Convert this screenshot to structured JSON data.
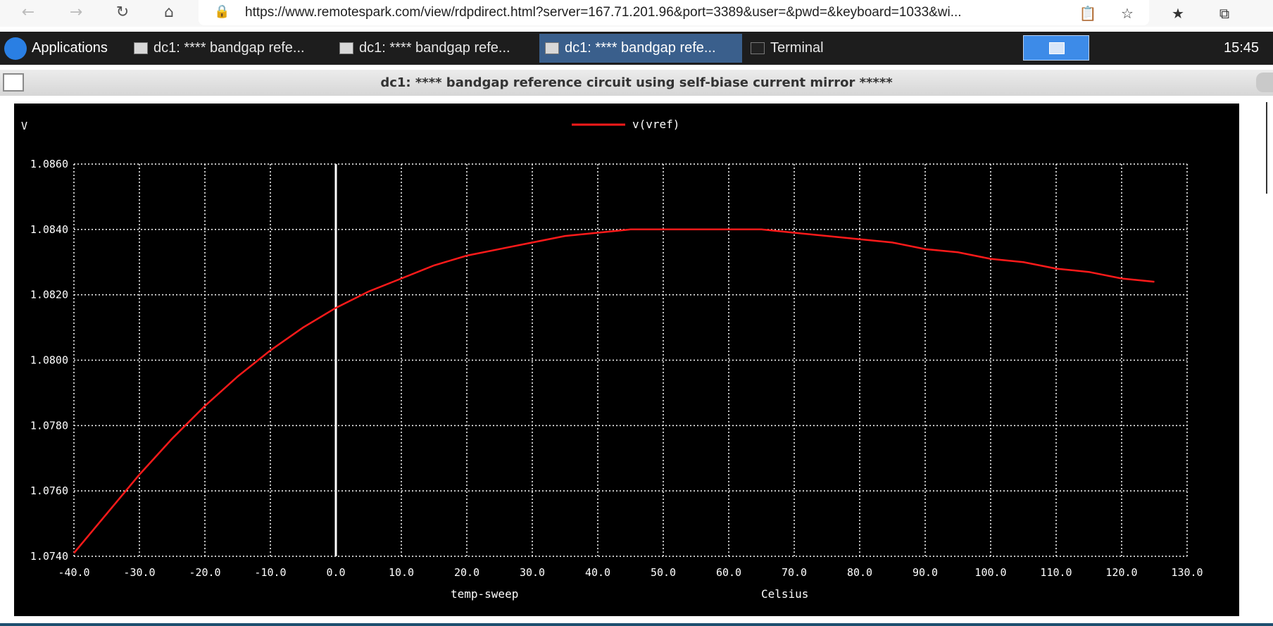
{
  "browser": {
    "url": "https://www.remotespark.com/view/rdpdirect.html?server=167.71.201.96&port=3389&user=&pwd=&keyboard=1033&wi...",
    "back_icon": "arrow-left-icon",
    "forward_icon": "arrow-right-icon",
    "reload_icon": "reload-icon",
    "home_icon": "home-icon",
    "lock_icon": "lock-icon",
    "toolbar_icons": [
      "clipboard-icon",
      "add-favorite-icon",
      "favorites-icon",
      "collections-icon"
    ]
  },
  "taskbar": {
    "apps_label": "Applications",
    "tasks": [
      {
        "label": "dc1: **** bandgap refe...",
        "active": false
      },
      {
        "label": "dc1: **** bandgap refe...",
        "active": false
      },
      {
        "label": "dc1: **** bandgap refe...",
        "active": true
      },
      {
        "label": "Terminal",
        "active": false
      }
    ],
    "clock": "15:45"
  },
  "window": {
    "title": "dc1: **** bandgap reference circuit using self-biase current mirror *****"
  },
  "chart_data": {
    "type": "line",
    "title": "",
    "xlabel": "temp-sweep",
    "xunit": "Celsius",
    "ylabel": "V",
    "xlim": [
      -40,
      130
    ],
    "ylim": [
      1.074,
      1.086
    ],
    "grid": true,
    "legend_placement": "top-center",
    "x_ticks": [
      "-40.0",
      "-30.0",
      "-20.0",
      "-10.0",
      "0.0",
      "10.0",
      "20.0",
      "30.0",
      "40.0",
      "50.0",
      "60.0",
      "70.0",
      "80.0",
      "90.0",
      "100.0",
      "110.0",
      "120.0",
      "130.0"
    ],
    "y_ticks": [
      "1.0740",
      "1.0760",
      "1.0780",
      "1.0800",
      "1.0820",
      "1.0840",
      "1.0860"
    ],
    "colors": {
      "series": "#ff1a1a",
      "grid": "#ffffff",
      "background": "#000000"
    },
    "series": [
      {
        "name": "v(vref)",
        "x": [
          -40,
          -35,
          -30,
          -25,
          -20,
          -15,
          -10,
          -5,
          0,
          5,
          10,
          15,
          20,
          25,
          30,
          35,
          40,
          45,
          50,
          55,
          60,
          65,
          70,
          75,
          80,
          85,
          90,
          95,
          100,
          105,
          110,
          115,
          120,
          125
        ],
        "y": [
          1.0741,
          1.0753,
          1.0765,
          1.0776,
          1.0786,
          1.0795,
          1.0803,
          1.081,
          1.0816,
          1.0821,
          1.0825,
          1.0829,
          1.0832,
          1.0834,
          1.0836,
          1.0838,
          1.0839,
          1.084,
          1.084,
          1.084,
          1.084,
          1.084,
          1.0839,
          1.0838,
          1.0837,
          1.0836,
          1.0834,
          1.0833,
          1.0831,
          1.083,
          1.0828,
          1.0827,
          1.0825,
          1.0824
        ]
      }
    ]
  }
}
